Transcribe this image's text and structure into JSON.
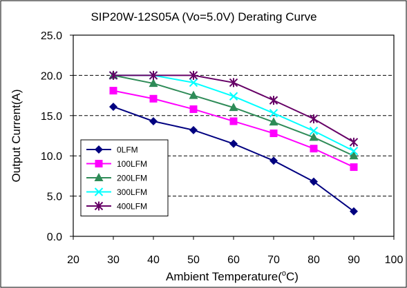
{
  "chart_data": {
    "type": "line",
    "title": "SIP20W-12S05A (Vo=5.0V) Derating Curve",
    "xlabel": "Ambient Temperature(",
    "xlabel_superscript": "o",
    "xlabel_suffix": "C)",
    "ylabel": "Output Current(A)",
    "xlim": [
      20,
      100
    ],
    "ylim": [
      0,
      25
    ],
    "x_ticks": [
      20,
      30,
      40,
      50,
      60,
      70,
      80,
      90,
      100
    ],
    "x_tick_labels": [
      "20",
      "30",
      "40",
      "50",
      "60",
      "70",
      "80",
      "90",
      "100"
    ],
    "y_ticks": [
      0,
      5,
      10,
      15,
      20,
      25
    ],
    "y_tick_labels": [
      "0.0",
      "5.0",
      "10.0",
      "15.0",
      "20.0",
      "25.0"
    ],
    "grid": "horizontal dashed",
    "legend_position": "bottom-left",
    "x": [
      30,
      40,
      50,
      60,
      70,
      80,
      90
    ],
    "series": [
      {
        "name": "0LFM",
        "color": "#000080",
        "marker": "diamond",
        "values": [
          16.1,
          14.3,
          13.2,
          11.5,
          9.4,
          6.8,
          3.1
        ]
      },
      {
        "name": "100LFM",
        "color": "#FF00FF",
        "marker": "square",
        "values": [
          18.1,
          17.1,
          15.8,
          14.3,
          12.8,
          10.9,
          8.6
        ]
      },
      {
        "name": "200LFM",
        "color": "#2E8B57",
        "marker": "triangle",
        "values": [
          20.0,
          19.0,
          17.5,
          16.0,
          14.2,
          12.3,
          10.0
        ]
      },
      {
        "name": "300LFM",
        "color": "#00FFFF",
        "marker": "x",
        "values": [
          20.0,
          20.0,
          19.1,
          17.4,
          15.3,
          13.1,
          10.6
        ]
      },
      {
        "name": "400LFM",
        "color": "#660066",
        "marker": "star",
        "values": [
          20.0,
          20.0,
          20.0,
          19.1,
          16.9,
          14.6,
          11.7
        ]
      }
    ]
  }
}
